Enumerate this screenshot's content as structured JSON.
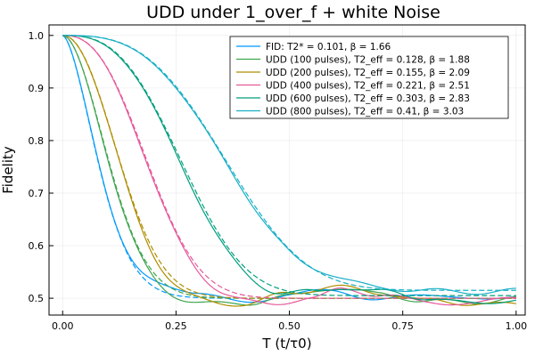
{
  "chart_data": {
    "type": "line",
    "title": "UDD under 1_over_f + white Noise",
    "xlabel": "T (t/τ0)",
    "ylabel": "Fidelity",
    "xlim": [
      -0.03,
      1.02
    ],
    "ylim": [
      0.468,
      1.02
    ],
    "x_ticks": [
      0.0,
      0.25,
      0.5,
      0.75,
      1.0
    ],
    "x_tick_labels": [
      "0.00",
      "0.25",
      "0.50",
      "0.75",
      "1.00"
    ],
    "y_ticks": [
      0.5,
      0.6,
      0.7,
      0.8,
      0.9,
      1.0
    ],
    "y_tick_labels": [
      "0.5",
      "0.6",
      "0.7",
      "0.8",
      "0.9",
      "1.0"
    ],
    "grid": true,
    "legend_position": "top-right",
    "fit_model": "0.5 + 0.5·exp(-(T/T2)^β) (dashed)",
    "series": [
      {
        "name": "FID: T2* = 0.101, β = 1.66",
        "color": "#009AFA",
        "T2": 0.101,
        "beta": 1.66,
        "plateau": 0.5,
        "noise": [
          [
            0.3,
            0.012
          ],
          [
            0.4,
            -0.01
          ],
          [
            0.5,
            0.008
          ],
          [
            0.6,
            0.015
          ],
          [
            0.7,
            -0.005
          ],
          [
            0.8,
            0.01
          ],
          [
            0.9,
            -0.004
          ],
          [
            1.0,
            0.006
          ]
        ]
      },
      {
        "name": "UDD (100 pulses), T2_eff = 0.128, β = 1.88",
        "color": "#3EA44E",
        "T2": 0.128,
        "beta": 1.88,
        "plateau": 0.5,
        "noise": [
          [
            0.3,
            -0.012
          ],
          [
            0.4,
            -0.01
          ],
          [
            0.5,
            0.004
          ],
          [
            0.6,
            0.02
          ],
          [
            0.7,
            0.008
          ],
          [
            0.8,
            -0.005
          ],
          [
            0.9,
            -0.008
          ],
          [
            1.0,
            0.0
          ]
        ]
      },
      {
        "name": "UDD (200 pulses), T2_eff = 0.155, β = 2.09",
        "color": "#AF8D00",
        "T2": 0.155,
        "beta": 2.09,
        "plateau": 0.5,
        "noise": [
          [
            0.3,
            -0.01
          ],
          [
            0.4,
            -0.012
          ],
          [
            0.5,
            0.01
          ],
          [
            0.6,
            0.022
          ],
          [
            0.7,
            0.01
          ],
          [
            0.8,
            -0.004
          ],
          [
            0.9,
            -0.01
          ],
          [
            1.0,
            -0.012
          ]
        ]
      },
      {
        "name": "UDD (400 pulses), T2_eff = 0.221, β = 2.51",
        "color": "#E5589A",
        "T2": 0.221,
        "beta": 2.51,
        "plateau": 0.5,
        "noise": [
          [
            0.35,
            -0.008
          ],
          [
            0.45,
            -0.012
          ],
          [
            0.55,
            0.0
          ],
          [
            0.62,
            0.018
          ],
          [
            0.7,
            0.006
          ],
          [
            0.8,
            -0.006
          ],
          [
            0.9,
            -0.012
          ],
          [
            1.0,
            0.005
          ]
        ]
      },
      {
        "name": "UDD (600 pulses), T2_eff = 0.303, β = 2.83",
        "color": "#009E7E",
        "T2": 0.303,
        "beta": 2.83,
        "plateau": 0.505,
        "noise": [
          [
            0.45,
            -0.01
          ],
          [
            0.55,
            0.005
          ],
          [
            0.62,
            0.015
          ],
          [
            0.7,
            0.008
          ],
          [
            0.8,
            -0.004
          ],
          [
            0.9,
            -0.015
          ],
          [
            1.0,
            -0.008
          ]
        ]
      },
      {
        "name": "UDD (800 pulses), T2_eff = 0.41, β = 3.03",
        "color": "#19AFC7",
        "T2": 0.41,
        "beta": 3.03,
        "plateau": 0.515,
        "noise": [
          [
            0.5,
            -0.005
          ],
          [
            0.6,
            0.008
          ],
          [
            0.7,
            0.002
          ],
          [
            0.8,
            0.0
          ],
          [
            0.9,
            -0.004
          ],
          [
            1.0,
            0.0
          ]
        ]
      }
    ]
  }
}
